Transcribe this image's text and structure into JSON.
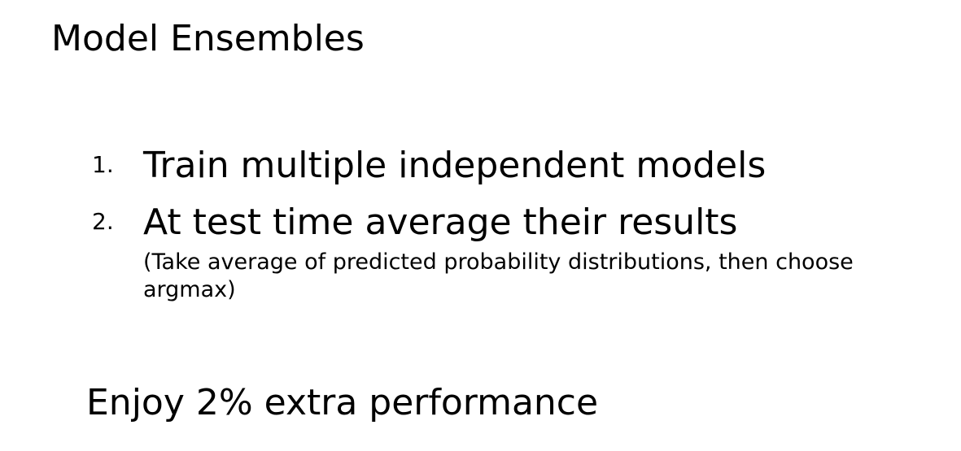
{
  "slide": {
    "title": "Model Ensembles",
    "items": [
      {
        "number": "1.",
        "text": "Train multiple independent models"
      },
      {
        "number": "2.",
        "text": "At test time average their results",
        "sub": "(Take average of predicted probability distributions, then choose argmax)"
      }
    ],
    "closing": "Enjoy 2% extra performance"
  }
}
